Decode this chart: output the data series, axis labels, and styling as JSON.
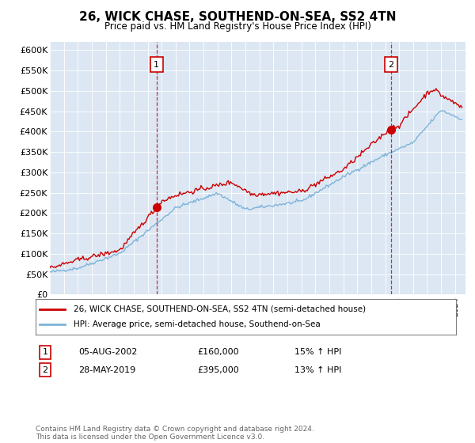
{
  "title": "26, WICK CHASE, SOUTHEND-ON-SEA, SS2 4TN",
  "subtitle": "Price paid vs. HM Land Registry's House Price Index (HPI)",
  "ylim": [
    0,
    620000
  ],
  "yticks": [
    0,
    50000,
    100000,
    150000,
    200000,
    250000,
    300000,
    350000,
    400000,
    450000,
    500000,
    550000,
    600000
  ],
  "ytick_labels": [
    "£0",
    "£50K",
    "£100K",
    "£150K",
    "£200K",
    "£250K",
    "£300K",
    "£350K",
    "£400K",
    "£450K",
    "£500K",
    "£550K",
    "£600K"
  ],
  "bg_color": "#dce7f3",
  "line1_color": "#cc0000",
  "line2_color": "#7eb3d8",
  "line1_label": "26, WICK CHASE, SOUTHEND-ON-SEA, SS2 4TN (semi-detached house)",
  "line2_label": "HPI: Average price, semi-detached house, Southend-on-Sea",
  "vline_color": "#cc0000",
  "marker1_date_str": "05-AUG-2002",
  "marker1_price": "£160,000",
  "marker1_hpi": "15% ↑ HPI",
  "marker2_date_str": "28-MAY-2019",
  "marker2_price": "£395,000",
  "marker2_hpi": "13% ↑ HPI",
  "footer": "Contains HM Land Registry data © Crown copyright and database right 2024.\nThis data is licensed under the Open Government Licence v3.0.",
  "x_start_year": 1995,
  "x_end_year": 2024
}
